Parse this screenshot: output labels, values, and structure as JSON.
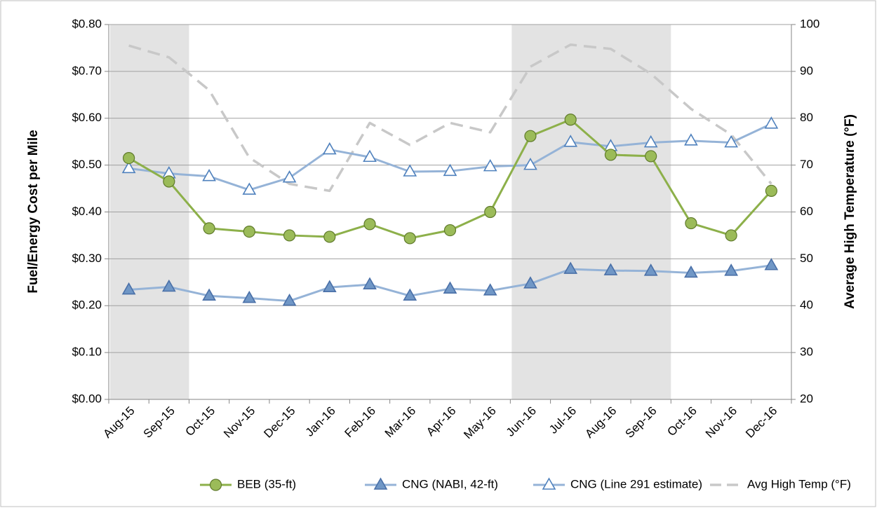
{
  "chart_data": {
    "type": "line",
    "y_label": "Fuel/Energy Cost per Mile",
    "y2_label": "Average High Temperature (°F)",
    "categories": [
      "Aug-15",
      "Sep-15",
      "Oct-15",
      "Nov-15",
      "Dec-15",
      "Jan-16",
      "Feb-16",
      "Mar-16",
      "Apr-16",
      "May-16",
      "Jun-16",
      "Jul-16",
      "Aug-16",
      "Sep-16",
      "Oct-16",
      "Nov-16",
      "Dec-16"
    ],
    "shaded_spans": [
      {
        "from": "Aug-15",
        "to": "Sep-15"
      },
      {
        "from": "Jun-16",
        "to": "Sep-16"
      }
    ],
    "shade_color": "#e3e3e3",
    "ylim": [
      0,
      0.8
    ],
    "yticks": [
      {
        "value": 0,
        "label": "$0.00"
      },
      {
        "value": 0.1,
        "label": "$0.10"
      },
      {
        "value": 0.2,
        "label": "$0.20"
      },
      {
        "value": 0.3,
        "label": "$0.30"
      },
      {
        "value": 0.4,
        "label": "$0.40"
      },
      {
        "value": 0.5,
        "label": "$0.50"
      },
      {
        "value": 0.6,
        "label": "$0.60"
      },
      {
        "value": 0.7,
        "label": "$0.70"
      },
      {
        "value": 0.8,
        "label": "$0.80"
      }
    ],
    "y2lim": [
      20,
      100
    ],
    "y2ticks": [
      20,
      30,
      40,
      50,
      60,
      70,
      80,
      90,
      100
    ],
    "grid": true,
    "legend": "bottom",
    "series": [
      {
        "name": "BEB (35-ft)",
        "color": "#8db04a",
        "marker": "circle",
        "marker_fill": "#9bbb59",
        "marker_stroke": "#5f7a2b",
        "values": [
          0.515,
          0.465,
          0.365,
          0.358,
          0.35,
          0.347,
          0.374,
          0.344,
          0.361,
          0.4,
          0.562,
          0.597,
          0.522,
          0.519,
          0.376,
          0.35,
          0.445
        ]
      },
      {
        "name": "CNG (NABI, 42-ft)",
        "color": "#95b3d7",
        "marker": "triangle",
        "marker_fill": "#7097c6",
        "marker_stroke": "#4a70a8",
        "values": [
          0.234,
          0.24,
          0.221,
          0.216,
          0.21,
          0.239,
          0.245,
          0.221,
          0.236,
          0.232,
          0.247,
          0.278,
          0.275,
          0.274,
          0.27,
          0.274,
          0.286
        ]
      },
      {
        "name": "CNG (Line 291 estimate)",
        "color": "#95b3d7",
        "marker": "triangle",
        "marker_fill": "#ffffff",
        "marker_stroke": "#4f81bd",
        "values": [
          0.493,
          0.482,
          0.476,
          0.447,
          0.473,
          0.533,
          0.517,
          0.486,
          0.487,
          0.497,
          0.5,
          0.549,
          0.54,
          0.548,
          0.552,
          0.548,
          0.588
        ]
      },
      {
        "name": "Avg High Temp (°F)",
        "color": "#c8c8c8",
        "dashed": true,
        "axis": "y2",
        "values": [
          95.5,
          93,
          86,
          71.6,
          66,
          64.5,
          79,
          74.3,
          79,
          77,
          91,
          95.7,
          94.8,
          89.5,
          82,
          76.5,
          66
        ]
      }
    ]
  }
}
